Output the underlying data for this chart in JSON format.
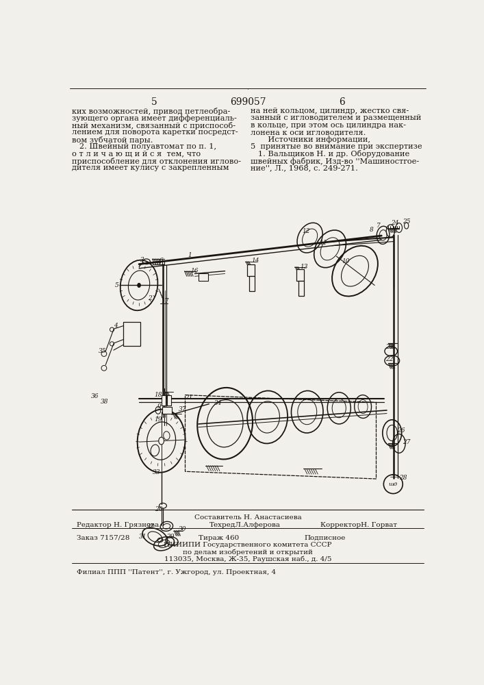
{
  "page_color": "#f2f0eb",
  "text_color": "#1a1510",
  "header_number": "699057",
  "page_left": "5",
  "page_right": "6",
  "col_left_text": [
    "ких возможностей, привод петлеобра-",
    "зующего органа имеет дифференциаль-",
    "ный механизм, связанный с приспособ-",
    "лением для поворота каретки посредст-",
    "вом зубчатой пары.",
    "   2. Швейный полуавтомат по п. 1,",
    "о т л и ч а ю щ и й с я  тем, что",
    "приспособление для отклонения иглово-",
    "дителя имеет кулису с закрепленным"
  ],
  "col_right_text": [
    "на ней кольцом, цилиндр, жестко свя-",
    "занный с игловодителем и размещенный",
    "в кольце, при этом ось цилиндра нак-",
    "лонена к оси игловодителя.",
    "       Источники информации,",
    "5  принятые во внимание при экспертизе",
    "   1. Вальщиков Н. и др. Оборудование",
    "швейных фабрик, Изд-во ''Машиностroe-",
    "ние'', Л., 1968, с. 249-271."
  ],
  "footer_composer": "Составитель Н. Анастасиева",
  "footer_editor": "Редактор Н. Грязнова",
  "footer_techred": "ТехредЛ.Алферова",
  "footer_corrector": "КорректорН. Горват",
  "footer_order": "Заказ 7157/28",
  "footer_tirazh": "Тираж 460",
  "footer_podpis": "Подписное",
  "footer_org1": "ЦНИИПИ Государственного комитета СССР",
  "footer_org2": "по делам изобретений и открытий",
  "footer_org3": "113035, Москва, Ж-35, Раушская наб., д. 4/5",
  "footer_branch": "Филиал ППП ''Патент'', г. Ужгород, ул. Проектная, 4",
  "font_body": 8.2,
  "font_hdr": 10,
  "font_ftr": 7.5,
  "font_label": 6.5
}
